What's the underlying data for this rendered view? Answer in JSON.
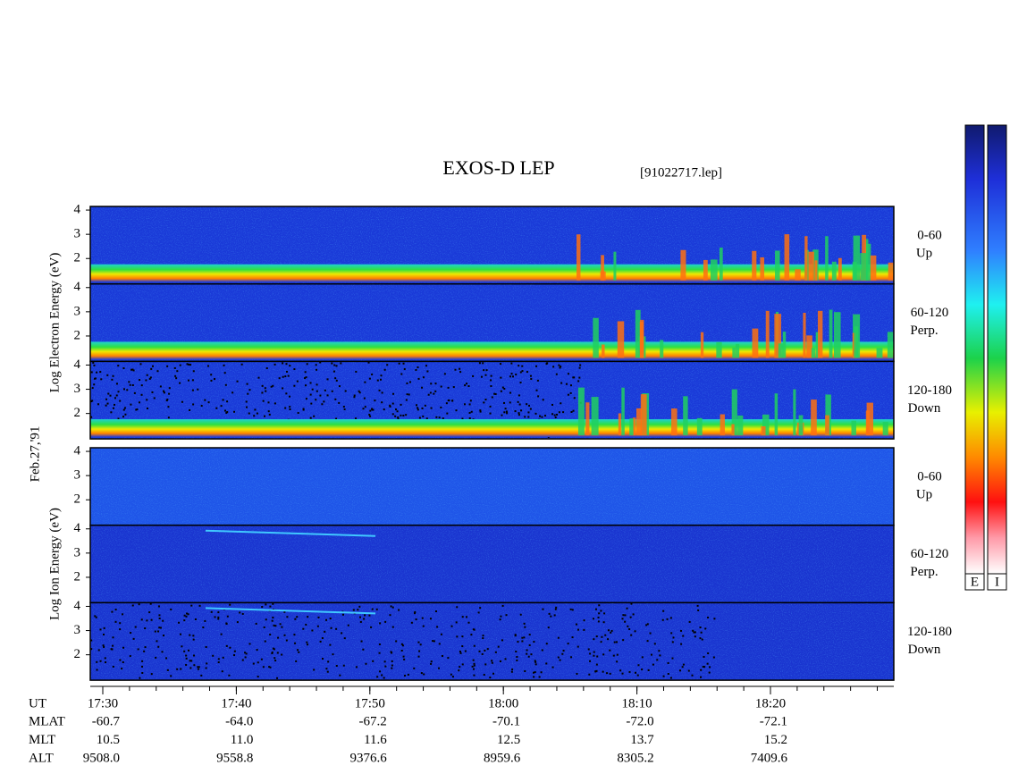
{
  "chart_data": {
    "type": "spectrogram",
    "title": "EXOS-D LEP",
    "subtitle": "[91022717.lep]",
    "date_label": "Feb.27,'91",
    "x_label": "UT",
    "x": [
      "17:30",
      "17:40",
      "17:50",
      "18:00",
      "18:10",
      "18:20"
    ],
    "ylim": [
      0.95,
      4.15
    ],
    "yticks": [
      2,
      3,
      4
    ],
    "groups": [
      {
        "ylabel": "Log Electron Energy (eV)",
        "kind": "electron",
        "panels": [
          {
            "label": "0-60",
            "sublabel": "Up"
          },
          {
            "label": "60-120",
            "sublabel": "Perp."
          },
          {
            "label": "120-180",
            "sublabel": "Down"
          }
        ]
      },
      {
        "ylabel": "Log Ion Energy (eV)",
        "kind": "ion",
        "panels": [
          {
            "label": "0-60",
            "sublabel": "Up"
          },
          {
            "label": "60-120",
            "sublabel": "Perp."
          },
          {
            "label": "120-180",
            "sublabel": "Down"
          }
        ]
      }
    ],
    "ephemeris": [
      {
        "name": "MLAT",
        "values": [
          "-60.7",
          "-64.0",
          "-67.2",
          "-70.1",
          "-72.0",
          "-72.1"
        ]
      },
      {
        "name": "MLT",
        "values": [
          "10.5",
          "11.0",
          "11.6",
          "12.5",
          "13.7",
          "15.2"
        ]
      },
      {
        "name": "ALT",
        "values": [
          "9508.0",
          "9558.8",
          "9376.6",
          "8959.6",
          "8305.2",
          "7409.6"
        ]
      }
    ],
    "colorbars": [
      "E",
      "I"
    ]
  }
}
